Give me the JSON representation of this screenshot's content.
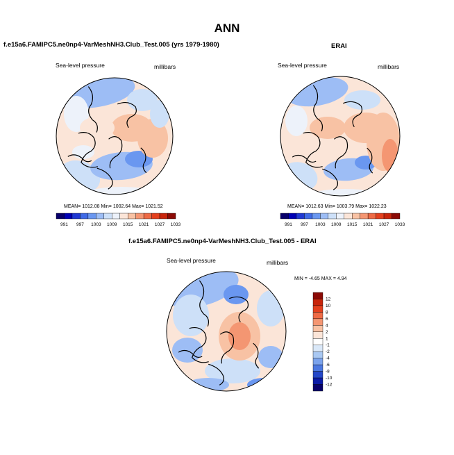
{
  "title": "ANN",
  "panels": [
    {
      "title": "f.e15a6.FAMIPC5.ne0np4-VarMeshNH3.Club_Test.005 (yrs 1979-1980)",
      "left_label": "Sea-level pressure",
      "right_label": "millibars",
      "stats": "MEAN= 1012.08  Min= 1002.64  Max= 1021.52"
    },
    {
      "title": "ERAI",
      "left_label": "Sea-level pressure",
      "right_label": "millibars",
      "stats": "MEAN= 1012.63  Min= 1003.79  Max= 1022.23"
    },
    {
      "title": "f.e15a6.FAMIPC5.ne0np4-VarMeshNH3.Club_Test.005 - ERAI",
      "left_label": "Sea-level pressure",
      "right_label": "millibars",
      "stats": "MIN = -4.65 MAX =  4.94"
    }
  ],
  "chart_data": [
    {
      "type": "heatmap",
      "title": "f.e15a6.FAMIPC5.ne0np4-VarMeshNH3.Club_Test.005 (yrs 1979-1980)",
      "variable": "Sea-level pressure",
      "units": "millibars",
      "projection": "north polar stereographic",
      "colorbar_levels": [
        "991",
        "997",
        "1003",
        "1009",
        "1015",
        "1021",
        "1027",
        "1033"
      ],
      "colorbar_colors": [
        "#08006a",
        "#0000b4",
        "#1f38d2",
        "#3f6ae6",
        "#6a97f0",
        "#9dbdf5",
        "#cde0f8",
        "#edf2fa",
        "#fbe5d8",
        "#f8c2a4",
        "#f49672",
        "#ee6a45",
        "#e3401e",
        "#c8250c",
        "#8b0a06"
      ],
      "mean": 1012.08,
      "min": 1002.64,
      "max": 1021.52
    },
    {
      "type": "heatmap",
      "title": "ERAI",
      "variable": "Sea-level pressure",
      "units": "millibars",
      "projection": "north polar stereographic",
      "colorbar_levels": [
        "991",
        "997",
        "1003",
        "1009",
        "1015",
        "1021",
        "1027",
        "1033"
      ],
      "colorbar_colors": [
        "#08006a",
        "#0000b4",
        "#1f38d2",
        "#3f6ae6",
        "#6a97f0",
        "#9dbdf5",
        "#cde0f8",
        "#edf2fa",
        "#fbe5d8",
        "#f8c2a4",
        "#f49672",
        "#ee6a45",
        "#e3401e",
        "#c8250c",
        "#8b0a06"
      ],
      "mean": 1012.63,
      "min": 1003.79,
      "max": 1022.23
    },
    {
      "type": "heatmap",
      "title": "f.e15a6.FAMIPC5.ne0np4-VarMeshNH3.Club_Test.005 - ERAI",
      "variable": "Sea-level pressure",
      "units": "millibars",
      "projection": "north polar stereographic",
      "colorbar_levels": [
        "12",
        "10",
        "8",
        "6",
        "4",
        "2",
        "1",
        "-1",
        "-2",
        "-4",
        "-6",
        "-8",
        "-10",
        "-12"
      ],
      "colorbar_colors": [
        "#8b0a06",
        "#c8250c",
        "#e3401e",
        "#ee6a45",
        "#f49672",
        "#f8c2a4",
        "#fbe5d8",
        "#ffffff",
        "#dae8f8",
        "#a9c8f2",
        "#7ba3ec",
        "#4c78e0",
        "#2447c8",
        "#0a1aa6",
        "#08006a"
      ],
      "min": -4.65,
      "max": 4.94
    }
  ]
}
